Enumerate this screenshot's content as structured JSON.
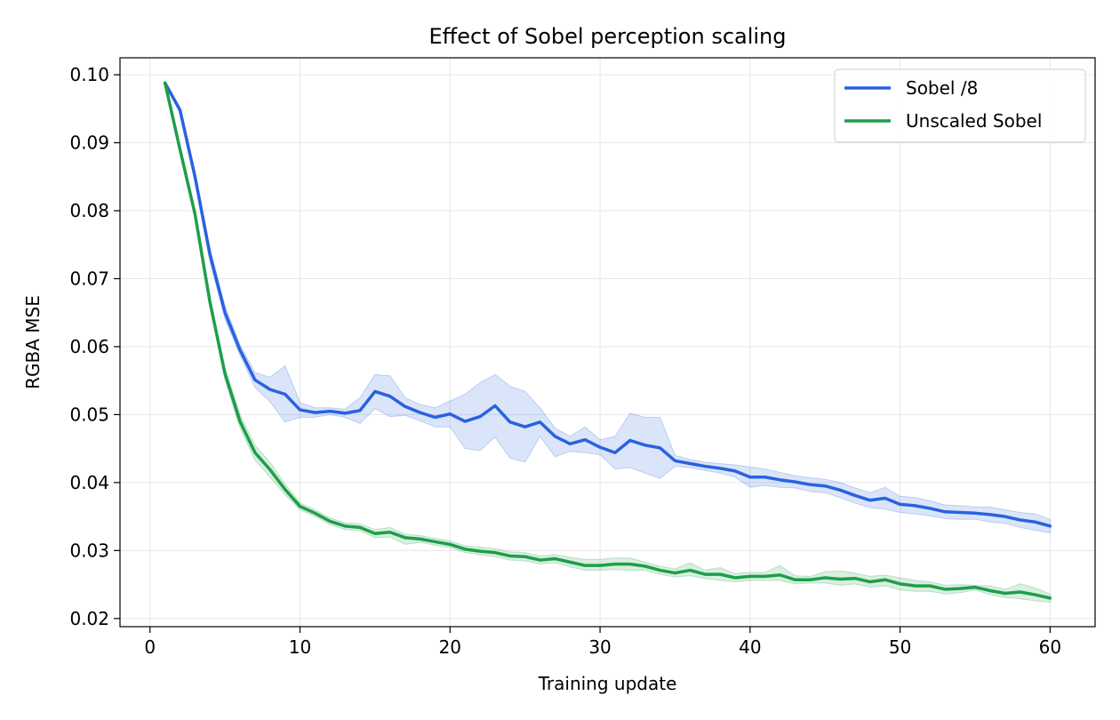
{
  "chart_data": {
    "type": "line",
    "title": "Effect of Sobel perception scaling",
    "xlabel": "Training update",
    "ylabel": "RGBA MSE",
    "xlim": [
      -2,
      63
    ],
    "ylim": [
      0.0188,
      0.1025
    ],
    "xticks": [
      0,
      10,
      20,
      30,
      40,
      50,
      60
    ],
    "yticks": [
      0.02,
      0.03,
      0.04,
      0.05,
      0.06,
      0.07,
      0.08,
      0.09,
      0.1
    ],
    "ytick_labels": [
      "0.02",
      "0.03",
      "0.04",
      "0.05",
      "0.06",
      "0.07",
      "0.08",
      "0.09",
      "0.10"
    ],
    "grid": true,
    "legend_position": "top-right",
    "x": [
      1,
      2,
      3,
      4,
      5,
      6,
      7,
      8,
      9,
      10,
      11,
      12,
      13,
      14,
      15,
      16,
      17,
      18,
      19,
      20,
      21,
      22,
      23,
      24,
      25,
      26,
      27,
      28,
      29,
      30,
      31,
      32,
      33,
      34,
      35,
      36,
      37,
      38,
      39,
      40,
      41,
      42,
      43,
      44,
      45,
      46,
      47,
      48,
      49,
      50,
      51,
      52,
      53,
      54,
      55,
      56,
      57,
      58,
      59,
      60
    ],
    "series": [
      {
        "name": "Sobel /8",
        "color": "#2962e0",
        "band_color": "#2962e0",
        "values": [
          0.0988,
          0.0948,
          0.085,
          0.0735,
          0.065,
          0.0595,
          0.0551,
          0.0537,
          0.053,
          0.0507,
          0.0503,
          0.0505,
          0.0502,
          0.0506,
          0.0534,
          0.0527,
          0.0512,
          0.0503,
          0.0496,
          0.0501,
          0.049,
          0.0497,
          0.0513,
          0.0489,
          0.0482,
          0.0489,
          0.0468,
          0.0457,
          0.0463,
          0.0452,
          0.0444,
          0.0462,
          0.0455,
          0.0451,
          0.0432,
          0.0428,
          0.0424,
          0.0421,
          0.0417,
          0.0408,
          0.0408,
          0.0404,
          0.0401,
          0.0397,
          0.0395,
          0.0389,
          0.0381,
          0.0374,
          0.0377,
          0.0368,
          0.0366,
          0.0362,
          0.0357,
          0.0356,
          0.0355,
          0.0353,
          0.035,
          0.0345,
          0.0342,
          0.0336
        ],
        "upper": [
          0.099,
          0.0952,
          0.0858,
          0.0745,
          0.066,
          0.0603,
          0.0562,
          0.0555,
          0.0572,
          0.0518,
          0.051,
          0.051,
          0.0508,
          0.0525,
          0.0559,
          0.0557,
          0.0525,
          0.0515,
          0.051,
          0.052,
          0.053,
          0.0547,
          0.0559,
          0.0542,
          0.0534,
          0.051,
          0.048,
          0.0468,
          0.0482,
          0.0463,
          0.0468,
          0.0502,
          0.0496,
          0.0496,
          0.044,
          0.0434,
          0.043,
          0.0428,
          0.0426,
          0.0423,
          0.042,
          0.0415,
          0.041,
          0.0407,
          0.0405,
          0.04,
          0.0392,
          0.0385,
          0.0393,
          0.038,
          0.0378,
          0.0373,
          0.0367,
          0.0366,
          0.0364,
          0.0364,
          0.036,
          0.0356,
          0.0354,
          0.0346
        ],
        "lower": [
          0.0986,
          0.0944,
          0.0842,
          0.0725,
          0.064,
          0.0587,
          0.054,
          0.0519,
          0.0489,
          0.0496,
          0.0496,
          0.05,
          0.0496,
          0.0487,
          0.0509,
          0.0497,
          0.0499,
          0.0491,
          0.0482,
          0.0482,
          0.045,
          0.0447,
          0.0467,
          0.0436,
          0.043,
          0.0468,
          0.0438,
          0.0446,
          0.0444,
          0.0441,
          0.042,
          0.0422,
          0.0414,
          0.0406,
          0.0424,
          0.0422,
          0.0418,
          0.0414,
          0.0408,
          0.0393,
          0.0396,
          0.0393,
          0.0392,
          0.0387,
          0.0385,
          0.0378,
          0.037,
          0.0363,
          0.0361,
          0.0356,
          0.0354,
          0.0351,
          0.0347,
          0.0346,
          0.0346,
          0.0342,
          0.034,
          0.0334,
          0.033,
          0.0326
        ]
      },
      {
        "name": "Unscaled Sobel",
        "color": "#1e9e4a",
        "band_color": "#1e9e4a",
        "values": [
          0.0988,
          0.089,
          0.0795,
          0.0665,
          0.056,
          0.049,
          0.0444,
          0.0419,
          0.039,
          0.0365,
          0.0355,
          0.0343,
          0.0336,
          0.0334,
          0.0325,
          0.0327,
          0.0319,
          0.0317,
          0.0313,
          0.0309,
          0.0302,
          0.0299,
          0.0297,
          0.0292,
          0.0291,
          0.0286,
          0.0288,
          0.0283,
          0.0278,
          0.0278,
          0.028,
          0.028,
          0.0277,
          0.0271,
          0.0267,
          0.0271,
          0.0265,
          0.0265,
          0.026,
          0.0262,
          0.0262,
          0.0264,
          0.0257,
          0.0257,
          0.026,
          0.0258,
          0.0259,
          0.0254,
          0.0257,
          0.0251,
          0.0248,
          0.0248,
          0.0243,
          0.0244,
          0.0246,
          0.0241,
          0.0237,
          0.0239,
          0.0235,
          0.023
        ],
        "upper": [
          0.099,
          0.0894,
          0.08,
          0.0672,
          0.0569,
          0.05,
          0.0455,
          0.043,
          0.0398,
          0.037,
          0.036,
          0.0348,
          0.0341,
          0.0339,
          0.0331,
          0.0334,
          0.0324,
          0.0322,
          0.0318,
          0.0314,
          0.0307,
          0.0305,
          0.0303,
          0.0298,
          0.0297,
          0.0292,
          0.0294,
          0.029,
          0.0287,
          0.0287,
          0.0289,
          0.0289,
          0.0283,
          0.0277,
          0.0273,
          0.0282,
          0.0271,
          0.0275,
          0.0266,
          0.0268,
          0.0268,
          0.0278,
          0.0263,
          0.0262,
          0.0269,
          0.027,
          0.0267,
          0.0262,
          0.0264,
          0.026,
          0.0256,
          0.0254,
          0.0249,
          0.025,
          0.0249,
          0.0248,
          0.0243,
          0.0251,
          0.0245,
          0.0236
        ],
        "lower": [
          0.0986,
          0.0886,
          0.079,
          0.0658,
          0.0551,
          0.048,
          0.0433,
          0.0408,
          0.0382,
          0.036,
          0.035,
          0.0338,
          0.0331,
          0.0329,
          0.0319,
          0.032,
          0.0309,
          0.0312,
          0.0308,
          0.0304,
          0.0297,
          0.0294,
          0.0291,
          0.0286,
          0.0285,
          0.028,
          0.0282,
          0.0276,
          0.0271,
          0.0271,
          0.0272,
          0.0271,
          0.0271,
          0.0265,
          0.0261,
          0.0263,
          0.0259,
          0.0256,
          0.0254,
          0.0256,
          0.0256,
          0.0256,
          0.0251,
          0.0252,
          0.0252,
          0.0249,
          0.0251,
          0.0246,
          0.0248,
          0.0242,
          0.024,
          0.024,
          0.0236,
          0.0238,
          0.0242,
          0.0235,
          0.0231,
          0.0229,
          0.0226,
          0.0224
        ]
      }
    ]
  }
}
